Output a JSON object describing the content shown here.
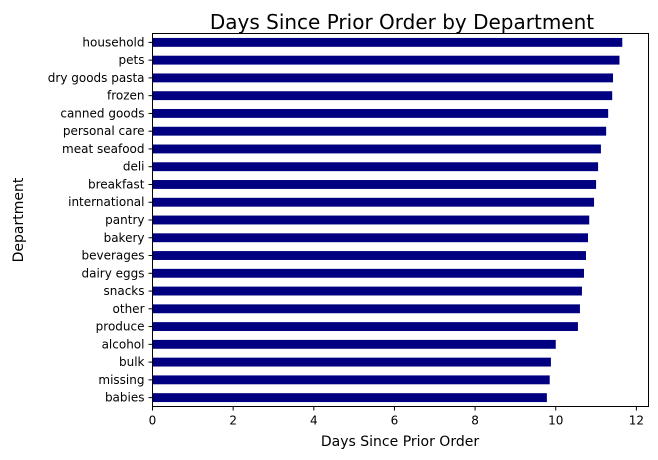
{
  "chart_data": {
    "type": "bar",
    "orientation": "horizontal",
    "title": "Days Since Prior Order by Department",
    "xlabel": "Days Since Prior Order",
    "ylabel": "Department",
    "xlim": [
      0,
      12.3
    ],
    "xticks": [
      "0",
      "2",
      "4",
      "6",
      "8",
      "10",
      "12"
    ],
    "categories": [
      "household",
      "pets",
      "dry goods pasta",
      "frozen",
      "canned goods",
      "personal care",
      "meat seafood",
      "deli",
      "breakfast",
      "international",
      "pantry",
      "bakery",
      "beverages",
      "dairy eggs",
      "snacks",
      "other",
      "produce",
      "alcohol",
      "bulk",
      "missing",
      "babies"
    ],
    "values": [
      11.65,
      11.58,
      11.42,
      11.4,
      11.3,
      11.25,
      11.12,
      11.05,
      11.0,
      10.95,
      10.83,
      10.8,
      10.75,
      10.7,
      10.65,
      10.6,
      10.55,
      10.0,
      9.88,
      9.85,
      9.78
    ],
    "bar_color": "#000080",
    "grid": false,
    "legend": "none"
  }
}
